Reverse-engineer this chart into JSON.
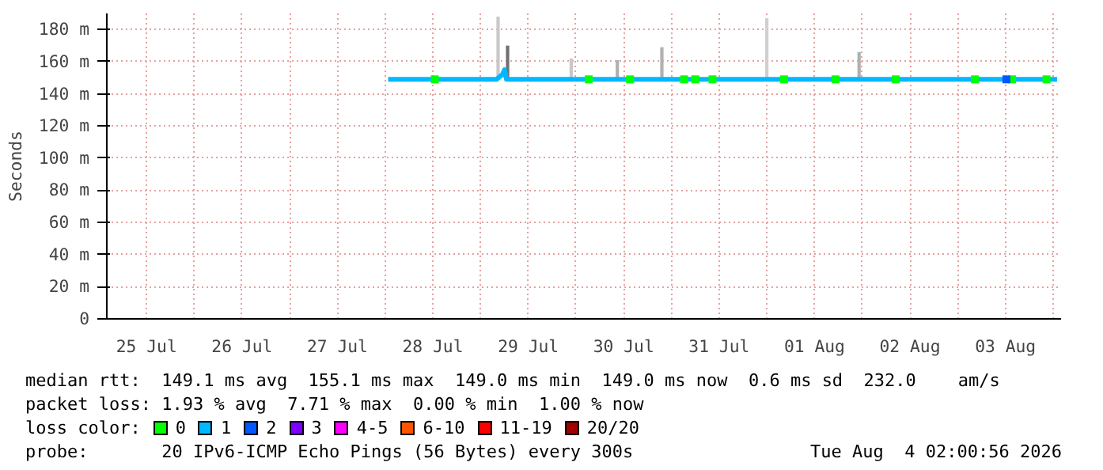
{
  "chart_data": {
    "type": "line",
    "ylabel": "Seconds",
    "legend_title": "loss color:",
    "legend": "bottom",
    "grid": true,
    "marker": "none",
    "line_style": "solid",
    "xlim": [
      "2026-07-25T02:00",
      "2026-08-04T02:00"
    ],
    "xticks": [
      {
        "value": "2026-07-25T12:00",
        "label": "25 Jul"
      },
      {
        "value": "2026-07-26T00:00",
        "label": null
      },
      {
        "value": "2026-07-26T12:00",
        "label": "26 Jul"
      },
      {
        "value": "2026-07-27T00:00",
        "label": null
      },
      {
        "value": "2026-07-27T12:00",
        "label": "27 Jul"
      },
      {
        "value": "2026-07-28T00:00",
        "label": null
      },
      {
        "value": "2026-07-28T12:00",
        "label": "28 Jul"
      },
      {
        "value": "2026-07-29T00:00",
        "label": null
      },
      {
        "value": "2026-07-29T12:00",
        "label": "29 Jul"
      },
      {
        "value": "2026-07-30T00:00",
        "label": null
      },
      {
        "value": "2026-07-30T12:00",
        "label": "30 Jul"
      },
      {
        "value": "2026-07-31T00:00",
        "label": null
      },
      {
        "value": "2026-07-31T12:00",
        "label": "31 Jul"
      },
      {
        "value": "2026-08-01T00:00",
        "label": null
      },
      {
        "value": "2026-08-01T12:00",
        "label": "01 Aug"
      },
      {
        "value": "2026-08-02T00:00",
        "label": null
      },
      {
        "value": "2026-08-02T12:00",
        "label": "02 Aug"
      },
      {
        "value": "2026-08-03T00:00",
        "label": null
      },
      {
        "value": "2026-08-03T12:00",
        "label": "03 Aug"
      },
      {
        "value": "2026-08-04T00:00",
        "label": null
      }
    ],
    "ylim": [
      0,
      190
    ],
    "yticks": [
      0,
      {
        "value": 20,
        "label": "20 m"
      },
      {
        "value": 40,
        "label": "40 m"
      },
      {
        "value": 60,
        "label": "60 m"
      },
      {
        "value": 80,
        "label": "80 m"
      },
      {
        "value": 100,
        "label": "100 m"
      },
      {
        "value": 120,
        "label": "120 m"
      },
      {
        "value": 140,
        "label": "140 m"
      },
      {
        "value": 160,
        "label": "160 m"
      },
      {
        "value": 180,
        "label": "180 m"
      }
    ],
    "series": [
      {
        "type": "bar",
        "colors": [
          "#c8c8c8",
          "#707070",
          "#c8c8c8",
          "#b0b0b0",
          "#b0b0b0",
          "#d0d0d0",
          "#b0b0b0"
        ],
        "x": [
          "2026-07-29T04:24",
          "2026-07-29T06:48",
          "2026-07-29T22:48",
          "2026-07-30T10:24",
          "2026-07-30T21:36",
          "2026-08-01T00:00",
          "2026-08-01T23:12"
        ],
        "base": [
          149,
          149,
          149,
          149,
          149,
          149,
          149
        ],
        "values": [
          39,
          21,
          13,
          12,
          20,
          38,
          17
        ]
      },
      {
        "name": "0",
        "type": "scatter",
        "marker": "square",
        "color": "#00ff00",
        "x": [
          "2026-07-28T12:30",
          "2026-07-30T03:12",
          "2026-07-30T13:36",
          "2026-07-31T03:12",
          "2026-07-31T06:00",
          "2026-07-31T10:20",
          "2026-08-01T04:20",
          "2026-08-01T17:16",
          "2026-08-02T08:24",
          "2026-08-03T04:20",
          "2026-08-03T13:40",
          "2026-08-03T22:20"
        ],
        "values": [
          149,
          149,
          149,
          149,
          149,
          149,
          149,
          149,
          149,
          149,
          149,
          149
        ]
      },
      {
        "name": "1",
        "color": "#00b8ff",
        "x": [
          "2026-07-28T00:45",
          "2026-07-29T04:00",
          "2026-07-29T05:30",
          "2026-07-29T06:00",
          "2026-07-29T06:30",
          "2026-07-31T00:00",
          "2026-08-02T00:00",
          "2026-08-04T01:00"
        ],
        "values": [
          149,
          149,
          152,
          155,
          149,
          149,
          149,
          149
        ]
      },
      {
        "name": "2",
        "type": "scatter",
        "marker": "square",
        "color": "#0059ff",
        "x": [
          "2026-08-03T12:15"
        ],
        "values": [
          149
        ]
      },
      {
        "name": "3",
        "type": "scatter",
        "marker": "square",
        "color": "#7e00ff"
      },
      {
        "name": "4-5",
        "type": "scatter",
        "marker": "square",
        "color": "#ff00ff"
      },
      {
        "name": "6-10",
        "type": "scatter",
        "marker": "square",
        "color": "#ff5500"
      },
      {
        "name": "11-19",
        "type": "scatter",
        "marker": "square",
        "color": "#ff0000"
      },
      {
        "name": "20/20",
        "type": "scatter",
        "marker": "square",
        "color": "#a10000"
      }
    ],
    "annotations": [
      "median rtt:  149.1 ms avg  155.1 ms max  149.0 ms min  149.0 ms now  0.6 ms sd  232.0    am/s",
      "packet loss: 1.93 % avg  7.71 % max  0.00 % min  1.00 % now",
      "probe:       20 IPv6-ICMP Echo Pings (56 Bytes) every 300s",
      "Tue Aug  4 02:00:56 2026"
    ]
  }
}
